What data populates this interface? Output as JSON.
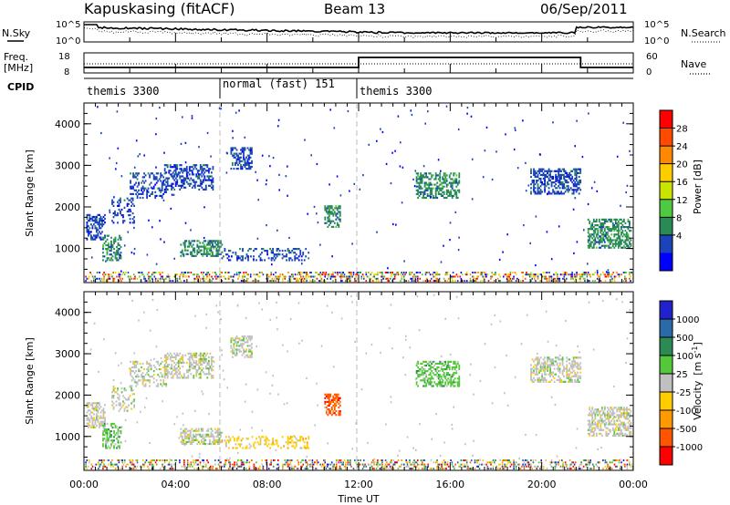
{
  "header": {
    "station": "Kapuskasing (fitACF)",
    "beam": "Beam 13",
    "date": "06/Sep/2011"
  },
  "chart_data": [
    {
      "type": "line",
      "panel": "noise",
      "left_label": "N.Sky",
      "right_label": "N.Search",
      "left_ticks": [
        "10^5",
        "10^0"
      ],
      "right_ticks": [
        "10^5",
        "10^0"
      ]
    },
    {
      "type": "line",
      "panel": "frequency",
      "left_label_line1": "Freq.",
      "left_label_line2": "[MHz]",
      "right_label": "Nave",
      "left_ticks": [
        "18",
        "8"
      ],
      "right_ticks": [
        "60",
        "0"
      ]
    },
    {
      "type": "table",
      "panel": "cpid",
      "label": "CPID",
      "segments": [
        {
          "name": "themis 3300",
          "start_h": 0,
          "end_h": 6
        },
        {
          "name": "normal (fast) 151",
          "start_h": 6,
          "end_h": 12
        },
        {
          "name": "themis 3300",
          "start_h": 12,
          "end_h": 24
        }
      ]
    },
    {
      "type": "heatmap",
      "panel": "power",
      "ylabel": "Slant Range [km]",
      "ylim": [
        180,
        4500
      ],
      "yticks": [
        "4000",
        "3000",
        "2000",
        "1000"
      ],
      "colorbar": {
        "label": "Power [dB]",
        "ticks": [
          "28",
          "24",
          "20",
          "16",
          "12",
          "8",
          "4"
        ],
        "colors": [
          "#ff0000",
          "#ff4a00",
          "#ff8800",
          "#ffcc00",
          "#c8e400",
          "#50c840",
          "#2a8a55",
          "#1a44b8",
          "#0000ff"
        ]
      }
    },
    {
      "type": "heatmap",
      "panel": "velocity",
      "ylabel": "Slant Range [km]",
      "ylim": [
        180,
        4500
      ],
      "yticks": [
        "4000",
        "3000",
        "2000",
        "1000"
      ],
      "xlabel": "Time UT",
      "xlim": [
        0,
        24
      ],
      "xticks": [
        "00:00",
        "04:00",
        "08:00",
        "12:00",
        "16:00",
        "20:00",
        "00:00"
      ],
      "colorbar": {
        "label_main": "Velocity",
        "label_unit": "[m s",
        "label_exp": "-1",
        "label_close": "]",
        "ticks": [
          "1000",
          "500",
          "100",
          "25",
          "-25",
          "-100",
          "-500",
          "-1000"
        ],
        "colors": [
          "#2222cc",
          "#2a6aa8",
          "#2e8a55",
          "#55c83a",
          "#c0c0c0",
          "#ffcc00",
          "#ff9900",
          "#ff5500",
          "#ff0000"
        ]
      }
    }
  ]
}
